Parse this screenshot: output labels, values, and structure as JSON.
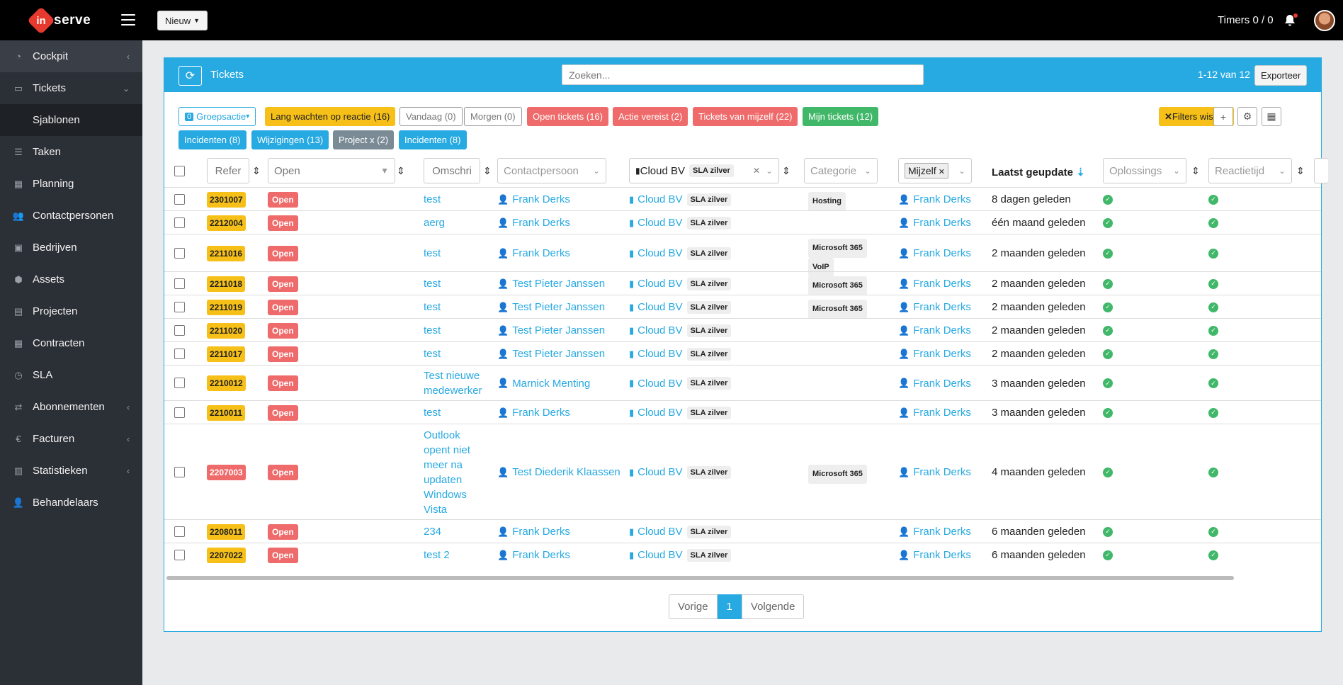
{
  "topbar": {
    "logo_badge": "in",
    "logo_text": "serve",
    "new_label": "Nieuw",
    "timers": "Timers 0 / 0"
  },
  "sidebar": {
    "items": [
      {
        "label": "Cockpit",
        "icon": "gauge-icon",
        "arrow": "‹"
      },
      {
        "label": "Tickets",
        "icon": "comment-icon",
        "arrow": "⌄"
      },
      {
        "label": "Sjablonen",
        "icon": "",
        "arrow": ""
      },
      {
        "label": "Taken",
        "icon": "list-icon",
        "arrow": ""
      },
      {
        "label": "Planning",
        "icon": "calendar-icon",
        "arrow": ""
      },
      {
        "label": "Contactpersonen",
        "icon": "users-icon",
        "arrow": ""
      },
      {
        "label": "Bedrijven",
        "icon": "briefcase-icon",
        "arrow": ""
      },
      {
        "label": "Assets",
        "icon": "cubes-icon",
        "arrow": ""
      },
      {
        "label": "Projecten",
        "icon": "clipboard-icon",
        "arrow": ""
      },
      {
        "label": "Contracten",
        "icon": "calendar-icon",
        "arrow": ""
      },
      {
        "label": "SLA",
        "icon": "clock-icon",
        "arrow": ""
      },
      {
        "label": "Abonnementen",
        "icon": "exchange-icon",
        "arrow": "‹"
      },
      {
        "label": "Facturen",
        "icon": "euro-icon",
        "arrow": "‹"
      },
      {
        "label": "Statistieken",
        "icon": "chart-icon",
        "arrow": "‹"
      },
      {
        "label": "Behandelaars",
        "icon": "user-icon",
        "arrow": ""
      }
    ]
  },
  "panel": {
    "title": "Tickets",
    "search_placeholder": "Zoeken...",
    "count": "1-12 van 12",
    "export_label": "Exporteer"
  },
  "filters": {
    "group_count": "0",
    "group_label": "Groepsactie",
    "chips_row1": [
      {
        "label": "Lang wachten op reactie (16)",
        "color": "yellow"
      },
      {
        "label": "Vandaag (0)",
        "color": "outline"
      },
      {
        "label": "Morgen (0)",
        "color": "outline"
      },
      {
        "label": "Open tickets (16)",
        "color": "red"
      },
      {
        "label": "Actie vereist (2)",
        "color": "red"
      },
      {
        "label": "Tickets van mijzelf (22)",
        "color": "red"
      },
      {
        "label": "Mijn tickets (12)",
        "color": "green"
      }
    ],
    "chips_row2": [
      {
        "label": "Incidenten (8)",
        "color": "blue"
      },
      {
        "label": "Wijzigingen (13)",
        "color": "blue"
      },
      {
        "label": "Project x (2)",
        "color": "gray"
      },
      {
        "label": "Incidenten (8)",
        "color": "blue"
      }
    ],
    "clear_label": "Filters wissen"
  },
  "headers": {
    "ref": "Refer",
    "status": "Open",
    "desc": "Omschri",
    "contact": "Contactpersoon",
    "company": "Cloud BV",
    "company_sla": "SLA zilver",
    "category": "Categorie",
    "assignee": "Mijzelf",
    "updated": "Laatst geupdate",
    "solution": "Oplossings",
    "reaction": "Reactietijd"
  },
  "rows": [
    {
      "ref": "2301007",
      "refcolor": "yellow",
      "status": "Open",
      "desc": [
        "test"
      ],
      "contact": "Frank Derks",
      "company": "Cloud BV",
      "sla": "SLA zilver",
      "cats": [
        "Hosting"
      ],
      "assignee": "Frank Derks",
      "updated": "8 dagen geleden"
    },
    {
      "ref": "2212004",
      "refcolor": "yellow",
      "status": "Open",
      "desc": [
        "aerg"
      ],
      "contact": "Frank Derks",
      "company": "Cloud BV",
      "sla": "SLA zilver",
      "cats": [],
      "assignee": "Frank Derks",
      "updated": "één maand geleden"
    },
    {
      "ref": "2211016",
      "refcolor": "yellow",
      "status": "Open",
      "desc": [
        "test"
      ],
      "contact": "Frank Derks",
      "company": "Cloud BV",
      "sla": "SLA zilver",
      "cats": [
        "Microsoft 365",
        "VoIP"
      ],
      "assignee": "Frank Derks",
      "updated": "2 maanden geleden"
    },
    {
      "ref": "2211018",
      "refcolor": "yellow",
      "status": "Open",
      "desc": [
        "test"
      ],
      "contact": "Test Pieter Janssen",
      "company": "Cloud BV",
      "sla": "SLA zilver",
      "cats": [
        "Microsoft 365"
      ],
      "assignee": "Frank Derks",
      "updated": "2 maanden geleden"
    },
    {
      "ref": "2211019",
      "refcolor": "yellow",
      "status": "Open",
      "desc": [
        "test"
      ],
      "contact": "Test Pieter Janssen",
      "company": "Cloud BV",
      "sla": "SLA zilver",
      "cats": [
        "Microsoft 365"
      ],
      "assignee": "Frank Derks",
      "updated": "2 maanden geleden"
    },
    {
      "ref": "2211020",
      "refcolor": "yellow",
      "status": "Open",
      "desc": [
        "test"
      ],
      "contact": "Test Pieter Janssen",
      "company": "Cloud BV",
      "sla": "SLA zilver",
      "cats": [],
      "assignee": "Frank Derks",
      "updated": "2 maanden geleden"
    },
    {
      "ref": "2211017",
      "refcolor": "yellow",
      "status": "Open",
      "desc": [
        "test"
      ],
      "contact": "Test Pieter Janssen",
      "company": "Cloud BV",
      "sla": "SLA zilver",
      "cats": [],
      "assignee": "Frank Derks",
      "updated": "2 maanden geleden"
    },
    {
      "ref": "2210012",
      "refcolor": "yellow",
      "status": "Open",
      "desc": [
        "Test nieuwe",
        "medewerker"
      ],
      "contact": "Marnick Menting",
      "company": "Cloud BV",
      "sla": "SLA zilver",
      "cats": [],
      "assignee": "Frank Derks",
      "updated": "3 maanden geleden"
    },
    {
      "ref": "2210011",
      "refcolor": "yellow",
      "status": "Open",
      "desc": [
        "test"
      ],
      "contact": "Frank Derks",
      "company": "Cloud BV",
      "sla": "SLA zilver",
      "cats": [],
      "assignee": "Frank Derks",
      "updated": "3 maanden geleden"
    },
    {
      "ref": "2207003",
      "refcolor": "red",
      "status": "Open",
      "desc": [
        "Outlook",
        "opent niet",
        "meer na",
        "updaten",
        "Windows",
        "Vista"
      ],
      "contact": "Test Diederik Klaassen",
      "company": "Cloud BV",
      "sla": "SLA zilver",
      "cats": [
        "Microsoft 365"
      ],
      "assignee": "Frank Derks",
      "updated": "4 maanden geleden"
    },
    {
      "ref": "2208011",
      "refcolor": "yellow",
      "status": "Open",
      "desc": [
        "234"
      ],
      "contact": "Frank Derks",
      "company": "Cloud BV",
      "sla": "SLA zilver",
      "cats": [],
      "assignee": "Frank Derks",
      "updated": "6 maanden geleden"
    },
    {
      "ref": "2207022",
      "refcolor": "yellow",
      "status": "Open",
      "desc": [
        "test 2"
      ],
      "contact": "Frank Derks",
      "company": "Cloud BV",
      "sla": "SLA zilver",
      "cats": [],
      "assignee": "Frank Derks",
      "updated": "6 maanden geleden"
    }
  ],
  "pager": {
    "prev": "Vorige",
    "current": "1",
    "next": "Volgende"
  }
}
